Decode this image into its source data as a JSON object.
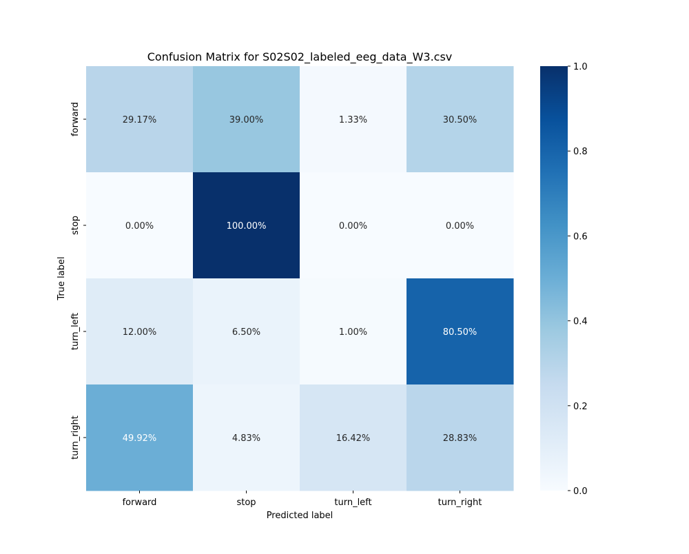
{
  "chart_data": {
    "type": "heatmap",
    "title": "Confusion Matrix for S02S02_labeled_eeg_data_W3.csv",
    "xlabel": "Predicted label",
    "ylabel": "True label",
    "x_categories": [
      "forward",
      "stop",
      "turn_left",
      "turn_right"
    ],
    "y_categories": [
      "forward",
      "stop",
      "turn_left",
      "turn_right"
    ],
    "values": [
      [
        0.2917,
        0.39,
        0.0133,
        0.305
      ],
      [
        0.0,
        1.0,
        0.0,
        0.0
      ],
      [
        0.12,
        0.065,
        0.01,
        0.805
      ],
      [
        0.4992,
        0.0483,
        0.1642,
        0.2883
      ]
    ],
    "annotations": [
      [
        "29.17%",
        "39.00%",
        "1.33%",
        "30.50%"
      ],
      [
        "0.00%",
        "100.00%",
        "0.00%",
        "0.00%"
      ],
      [
        "12.00%",
        "6.50%",
        "1.00%",
        "80.50%"
      ],
      [
        "49.92%",
        "4.83%",
        "16.42%",
        "28.83%"
      ]
    ],
    "colormap": "Blues",
    "colorbar": {
      "range": [
        0,
        1
      ],
      "ticks": [
        "0.0",
        "0.2",
        "0.4",
        "0.6",
        "0.8",
        "1.0"
      ]
    }
  }
}
